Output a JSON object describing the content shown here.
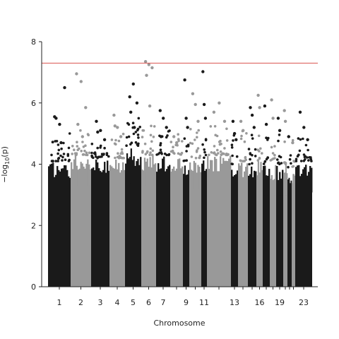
{
  "chart_data": {
    "type": "scatter",
    "subtype": "manhattan",
    "title": "",
    "xlabel": "Chromosome",
    "ylabel": "−log10(p)",
    "ylim": [
      0,
      8
    ],
    "yticks": [
      0,
      2,
      4,
      6,
      8
    ],
    "x_tick_labels": [
      "1",
      "2",
      "3",
      "4",
      "5",
      "6",
      "7",
      "9",
      "11",
      "13",
      "16",
      "19",
      "23"
    ],
    "significance_line": {
      "y": 7.3,
      "color": "#d9534f"
    },
    "colors": {
      "odd": "#1a1a1a",
      "even": "#999999",
      "axis": "#222222"
    },
    "grid": false,
    "chromosomes": [
      {
        "chr": "1",
        "label": "1",
        "color": "odd",
        "bulk_max": 4.1,
        "dense_max": 3.1,
        "peaks": [
          5.55,
          5.3,
          6.5,
          5.5,
          4.7
        ]
      },
      {
        "chr": "2",
        "label": "2",
        "color": "even",
        "bulk_max": 4.3,
        "dense_max": 3.3,
        "peaks": [
          6.95,
          6.7,
          5.85,
          5.3,
          4.9
        ]
      },
      {
        "chr": "3",
        "label": "3",
        "color": "odd",
        "bulk_max": 4.2,
        "dense_max": 3.3,
        "peaks": [
          5.4,
          5.1,
          4.8,
          5.05
        ]
      },
      {
        "chr": "4",
        "label": "4",
        "color": "even",
        "bulk_max": 4.2,
        "dense_max": 3.3,
        "peaks": [
          5.6,
          5.2,
          4.9,
          5.25
        ]
      },
      {
        "chr": "5",
        "label": "5",
        "color": "odd",
        "bulk_max": 4.6,
        "dense_max": 3.4,
        "peaks": [
          6.2,
          6.62,
          6.0,
          5.7,
          5.2
        ]
      },
      {
        "chr": "6",
        "label": "6",
        "color": "even",
        "bulk_max": 4.3,
        "dense_max": 3.3,
        "peaks": [
          7.35,
          7.25,
          7.15,
          6.9,
          5.9
        ]
      },
      {
        "chr": "7",
        "label": "7",
        "color": "odd",
        "bulk_max": 4.3,
        "dense_max": 3.3,
        "peaks": [
          5.75,
          5.5,
          5.2,
          4.9
        ]
      },
      {
        "chr": "8",
        "label": "",
        "color": "even",
        "bulk_max": 4.3,
        "dense_max": 3.3,
        "peaks": [
          4.9,
          4.7
        ]
      },
      {
        "chr": "9",
        "label": "9",
        "color": "odd",
        "bulk_max": 4.1,
        "dense_max": 3.2,
        "peaks": [
          6.75,
          5.5,
          5.2
        ]
      },
      {
        "chr": "10",
        "label": "",
        "color": "even",
        "bulk_max": 4.2,
        "dense_max": 3.2,
        "peaks": [
          6.3,
          5.95,
          5.4
        ]
      },
      {
        "chr": "11",
        "label": "11",
        "color": "odd",
        "bulk_max": 4.2,
        "dense_max": 3.3,
        "peaks": [
          7.02,
          5.95,
          5.5
        ]
      },
      {
        "chr": "12",
        "label": "",
        "color": "even",
        "bulk_max": 4.3,
        "dense_max": 3.3,
        "peaks": [
          5.7,
          6.0,
          5.4
        ]
      },
      {
        "chr": "13",
        "label": "13",
        "color": "odd",
        "bulk_max": 4.0,
        "dense_max": 3.1,
        "peaks": [
          5.4,
          5.0,
          4.8
        ]
      },
      {
        "chr": "14",
        "label": "",
        "color": "even",
        "bulk_max": 4.1,
        "dense_max": 3.1,
        "peaks": [
          5.4,
          5.1
        ]
      },
      {
        "chr": "15",
        "label": "",
        "color": "odd",
        "bulk_max": 4.0,
        "dense_max": 3.1,
        "peaks": [
          5.85,
          5.6,
          5.2
        ]
      },
      {
        "chr": "16",
        "label": "16",
        "color": "even",
        "bulk_max": 4.1,
        "dense_max": 3.1,
        "peaks": [
          6.25,
          5.85
        ]
      },
      {
        "chr": "17",
        "label": "",
        "color": "odd",
        "bulk_max": 4.0,
        "dense_max": 3.0,
        "peaks": [
          5.9,
          5.3
        ]
      },
      {
        "chr": "18",
        "label": "",
        "color": "even",
        "bulk_max": 4.0,
        "dense_max": 3.0,
        "peaks": [
          6.1,
          5.5
        ]
      },
      {
        "chr": "19",
        "label": "19",
        "color": "odd",
        "bulk_max": 4.0,
        "dense_max": 3.0,
        "peaks": [
          5.5,
          5.1
        ]
      },
      {
        "chr": "20",
        "label": "",
        "color": "even",
        "bulk_max": 4.0,
        "dense_max": 3.0,
        "peaks": [
          5.75,
          5.4
        ]
      },
      {
        "chr": "21",
        "label": "",
        "color": "odd",
        "bulk_max": 3.9,
        "dense_max": 2.9,
        "peaks": [
          4.9
        ]
      },
      {
        "chr": "22",
        "label": "",
        "color": "even",
        "bulk_max": 3.9,
        "dense_max": 2.9,
        "peaks": [
          4.7
        ]
      },
      {
        "chr": "23",
        "label": "23",
        "color": "odd",
        "bulk_max": 4.1,
        "dense_max": 3.1,
        "peaks": [
          5.7,
          5.2,
          4.8
        ]
      }
    ]
  }
}
